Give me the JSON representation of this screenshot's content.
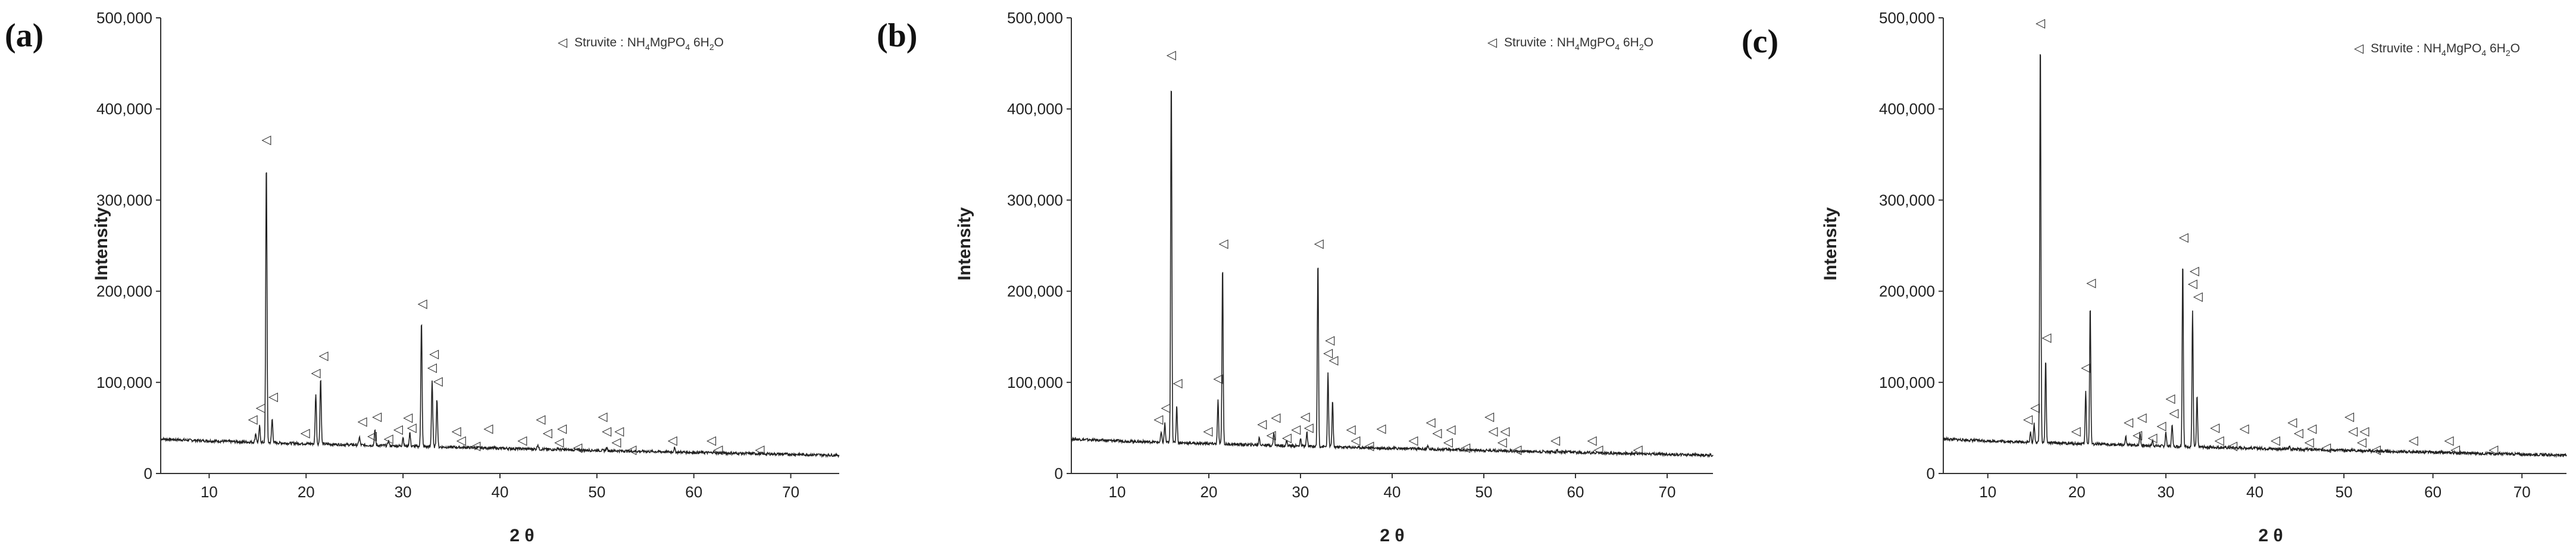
{
  "figure": {
    "panel_letters": [
      "(a)",
      "(b)",
      "(c)"
    ],
    "legend": {
      "marker_symbol": "◁",
      "label_prefix": "Struvite : NH",
      "sub1": "4",
      "mid": "MgPO",
      "sub2": "4",
      "after": " 6H",
      "sub3": "2",
      "end": "O"
    },
    "colors": {
      "line": "#222222",
      "axis": "#333333",
      "marker": "#333333"
    }
  },
  "chart_data": [
    {
      "type": "line",
      "panel": "(a)",
      "xlabel": "2 θ",
      "ylabel": "Intensity",
      "xlim": [
        5,
        75
      ],
      "ylim": [
        0,
        500000
      ],
      "x_ticks": [
        10,
        20,
        30,
        40,
        50,
        60,
        70
      ],
      "y_ticks": [
        0,
        100000,
        200000,
        300000,
        400000,
        500000
      ],
      "y_tick_labels": [
        "0",
        "100,000",
        "200,000",
        "300,000",
        "400,000",
        "500,000"
      ],
      "background": {
        "start": 38000,
        "end": 20000
      },
      "peaks": [
        {
          "x": 14.8,
          "y": 44000
        },
        {
          "x": 15.2,
          "y": 52000
        },
        {
          "x": 15.9,
          "y": 345000
        },
        {
          "x": 16.5,
          "y": 60000
        },
        {
          "x": 19.9,
          "y": 28000
        },
        {
          "x": 21.0,
          "y": 88000
        },
        {
          "x": 21.5,
          "y": 105000
        },
        {
          "x": 25.5,
          "y": 40000
        },
        {
          "x": 27.1,
          "y": 47000
        },
        {
          "x": 28.5,
          "y": 36000
        },
        {
          "x": 30.0,
          "y": 40000
        },
        {
          "x": 30.7,
          "y": 45000
        },
        {
          "x": 31.9,
          "y": 170000
        },
        {
          "x": 33.0,
          "y": 102000
        },
        {
          "x": 33.5,
          "y": 82000
        },
        {
          "x": 35.2,
          "y": 26000
        },
        {
          "x": 36.0,
          "y": 20000
        },
        {
          "x": 38.0,
          "y": 24000
        },
        {
          "x": 42.0,
          "y": 22000
        },
        {
          "x": 43.9,
          "y": 32000
        },
        {
          "x": 45.0,
          "y": 24000
        },
        {
          "x": 46.0,
          "y": 28000
        },
        {
          "x": 47.0,
          "y": 20000
        },
        {
          "x": 49.5,
          "y": 18000
        },
        {
          "x": 51.0,
          "y": 28000
        },
        {
          "x": 52.0,
          "y": 24000
        },
        {
          "x": 53.0,
          "y": 16000
        },
        {
          "x": 58.0,
          "y": 28000
        },
        {
          "x": 62.0,
          "y": 24000
        },
        {
          "x": 63.0,
          "y": 14000
        }
      ],
      "markers": [
        {
          "x": 14.5,
          "y": 55000
        },
        {
          "x": 15.3,
          "y": 68000
        },
        {
          "x": 15.9,
          "y": 362000
        },
        {
          "x": 16.6,
          "y": 80000
        },
        {
          "x": 19.9,
          "y": 40000
        },
        {
          "x": 21.0,
          "y": 106000
        },
        {
          "x": 21.8,
          "y": 125000
        },
        {
          "x": 25.8,
          "y": 53000
        },
        {
          "x": 27.3,
          "y": 58000
        },
        {
          "x": 26.8,
          "y": 37000
        },
        {
          "x": 28.5,
          "y": 34000
        },
        {
          "x": 29.5,
          "y": 44000
        },
        {
          "x": 30.5,
          "y": 57000
        },
        {
          "x": 30.9,
          "y": 46000
        },
        {
          "x": 32.0,
          "y": 182000
        },
        {
          "x": 33.2,
          "y": 127000
        },
        {
          "x": 33.0,
          "y": 112000
        },
        {
          "x": 33.6,
          "y": 97000
        },
        {
          "x": 35.5,
          "y": 42000
        },
        {
          "x": 36.0,
          "y": 32000
        },
        {
          "x": 37.5,
          "y": 26000
        },
        {
          "x": 38.8,
          "y": 45000
        },
        {
          "x": 42.3,
          "y": 32000
        },
        {
          "x": 44.2,
          "y": 55000
        },
        {
          "x": 44.9,
          "y": 40000
        },
        {
          "x": 46.4,
          "y": 45000
        },
        {
          "x": 46.1,
          "y": 30000
        },
        {
          "x": 48.0,
          "y": 24000
        },
        {
          "x": 50.6,
          "y": 58000
        },
        {
          "x": 51.0,
          "y": 42000
        },
        {
          "x": 52.3,
          "y": 42000
        },
        {
          "x": 52.0,
          "y": 30000
        },
        {
          "x": 53.6,
          "y": 22000
        },
        {
          "x": 57.8,
          "y": 32000
        },
        {
          "x": 61.8,
          "y": 32000
        },
        {
          "x": 62.5,
          "y": 22000
        },
        {
          "x": 66.8,
          "y": 22000
        }
      ]
    },
    {
      "type": "line",
      "panel": "(b)",
      "xlabel": "2 θ",
      "ylabel": "Intensity",
      "xlim": [
        5,
        75
      ],
      "ylim": [
        0,
        500000
      ],
      "x_ticks": [
        10,
        20,
        30,
        40,
        50,
        60,
        70
      ],
      "y_ticks": [
        0,
        100000,
        200000,
        300000,
        400000,
        500000
      ],
      "y_tick_labels": [
        "0",
        "100,000",
        "200,000",
        "300,000",
        "400,000",
        "500,000"
      ],
      "background": {
        "start": 38000,
        "end": 20000
      },
      "peaks": [
        {
          "x": 14.8,
          "y": 45000
        },
        {
          "x": 15.2,
          "y": 55000
        },
        {
          "x": 15.9,
          "y": 440000
        },
        {
          "x": 16.5,
          "y": 75000
        },
        {
          "x": 19.9,
          "y": 30000
        },
        {
          "x": 21.0,
          "y": 80000
        },
        {
          "x": 21.5,
          "y": 230000
        },
        {
          "x": 25.5,
          "y": 40000
        },
        {
          "x": 27.1,
          "y": 45000
        },
        {
          "x": 28.5,
          "y": 36000
        },
        {
          "x": 30.0,
          "y": 38000
        },
        {
          "x": 30.7,
          "y": 45000
        },
        {
          "x": 31.9,
          "y": 235000
        },
        {
          "x": 33.0,
          "y": 110000
        },
        {
          "x": 33.5,
          "y": 80000
        },
        {
          "x": 35.2,
          "y": 24000
        },
        {
          "x": 36.0,
          "y": 20000
        },
        {
          "x": 38.0,
          "y": 22000
        },
        {
          "x": 42.0,
          "y": 20000
        },
        {
          "x": 43.9,
          "y": 30000
        },
        {
          "x": 45.0,
          "y": 22000
        },
        {
          "x": 46.0,
          "y": 26000
        },
        {
          "x": 47.0,
          "y": 18000
        },
        {
          "x": 49.5,
          "y": 16000
        },
        {
          "x": 51.0,
          "y": 26000
        },
        {
          "x": 52.0,
          "y": 22000
        },
        {
          "x": 53.0,
          "y": 14000
        },
        {
          "x": 58.0,
          "y": 26000
        },
        {
          "x": 62.0,
          "y": 20000
        },
        {
          "x": 63.0,
          "y": 12000
        }
      ],
      "markers": [
        {
          "x": 14.5,
          "y": 55000
        },
        {
          "x": 15.3,
          "y": 68000
        },
        {
          "x": 15.9,
          "y": 455000
        },
        {
          "x": 16.6,
          "y": 95000
        },
        {
          "x": 19.9,
          "y": 42000
        },
        {
          "x": 21.0,
          "y": 100000
        },
        {
          "x": 21.6,
          "y": 248000
        },
        {
          "x": 25.8,
          "y": 50000
        },
        {
          "x": 27.3,
          "y": 57000
        },
        {
          "x": 26.8,
          "y": 38000
        },
        {
          "x": 28.5,
          "y": 35000
        },
        {
          "x": 29.5,
          "y": 44000
        },
        {
          "x": 30.5,
          "y": 58000
        },
        {
          "x": 30.9,
          "y": 46000
        },
        {
          "x": 32.0,
          "y": 248000
        },
        {
          "x": 33.2,
          "y": 142000
        },
        {
          "x": 33.0,
          "y": 128000
        },
        {
          "x": 33.6,
          "y": 120000
        },
        {
          "x": 35.5,
          "y": 44000
        },
        {
          "x": 36.0,
          "y": 32000
        },
        {
          "x": 37.5,
          "y": 26000
        },
        {
          "x": 38.8,
          "y": 45000
        },
        {
          "x": 42.3,
          "y": 32000
        },
        {
          "x": 44.2,
          "y": 52000
        },
        {
          "x": 44.9,
          "y": 40000
        },
        {
          "x": 46.4,
          "y": 44000
        },
        {
          "x": 46.1,
          "y": 30000
        },
        {
          "x": 48.0,
          "y": 24000
        },
        {
          "x": 50.6,
          "y": 58000
        },
        {
          "x": 51.0,
          "y": 42000
        },
        {
          "x": 52.3,
          "y": 42000
        },
        {
          "x": 52.0,
          "y": 30000
        },
        {
          "x": 53.6,
          "y": 22000
        },
        {
          "x": 57.8,
          "y": 32000
        },
        {
          "x": 61.8,
          "y": 32000
        },
        {
          "x": 62.5,
          "y": 22000
        },
        {
          "x": 66.8,
          "y": 22000
        }
      ]
    },
    {
      "type": "line",
      "panel": "(c)",
      "xlabel": "2 θ",
      "ylabel": "Intensity",
      "xlim": [
        5,
        75
      ],
      "ylim": [
        0,
        500000
      ],
      "x_ticks": [
        10,
        20,
        30,
        40,
        50,
        60,
        70
      ],
      "y_ticks": [
        0,
        100000,
        200000,
        300000,
        400000,
        500000
      ],
      "y_tick_labels": [
        "0",
        "100,000",
        "200,000",
        "300,000",
        "400,000",
        "500,000"
      ],
      "background": {
        "start": 38000,
        "end": 20000
      },
      "peaks": [
        {
          "x": 14.8,
          "y": 45000
        },
        {
          "x": 15.2,
          "y": 55000
        },
        {
          "x": 15.9,
          "y": 480000
        },
        {
          "x": 16.5,
          "y": 125000
        },
        {
          "x": 19.9,
          "y": 30000
        },
        {
          "x": 21.0,
          "y": 90000
        },
        {
          "x": 21.5,
          "y": 185000
        },
        {
          "x": 25.5,
          "y": 40000
        },
        {
          "x": 27.1,
          "y": 45000
        },
        {
          "x": 28.5,
          "y": 36000
        },
        {
          "x": 30.0,
          "y": 45000
        },
        {
          "x": 30.7,
          "y": 55000
        },
        {
          "x": 31.9,
          "y": 235000
        },
        {
          "x": 33.0,
          "y": 180000
        },
        {
          "x": 33.5,
          "y": 85000
        },
        {
          "x": 35.2,
          "y": 26000
        },
        {
          "x": 36.0,
          "y": 20000
        },
        {
          "x": 38.0,
          "y": 22000
        },
        {
          "x": 42.0,
          "y": 20000
        },
        {
          "x": 43.9,
          "y": 30000
        },
        {
          "x": 45.0,
          "y": 22000
        },
        {
          "x": 46.0,
          "y": 26000
        },
        {
          "x": 47.0,
          "y": 18000
        },
        {
          "x": 49.5,
          "y": 16000
        },
        {
          "x": 51.0,
          "y": 26000
        },
        {
          "x": 52.0,
          "y": 22000
        },
        {
          "x": 53.0,
          "y": 14000
        },
        {
          "x": 58.0,
          "y": 24000
        },
        {
          "x": 62.0,
          "y": 20000
        },
        {
          "x": 63.0,
          "y": 12000
        }
      ],
      "markers": [
        {
          "x": 14.5,
          "y": 55000
        },
        {
          "x": 15.3,
          "y": 68000
        },
        {
          "x": 15.9,
          "y": 490000
        },
        {
          "x": 16.6,
          "y": 145000
        },
        {
          "x": 19.9,
          "y": 42000
        },
        {
          "x": 21.0,
          "y": 112000
        },
        {
          "x": 21.6,
          "y": 205000
        },
        {
          "x": 25.8,
          "y": 52000
        },
        {
          "x": 27.3,
          "y": 57000
        },
        {
          "x": 26.8,
          "y": 38000
        },
        {
          "x": 28.5,
          "y": 35000
        },
        {
          "x": 29.5,
          "y": 48000
        },
        {
          "x": 30.5,
          "y": 78000
        },
        {
          "x": 30.9,
          "y": 62000
        },
        {
          "x": 32.0,
          "y": 255000
        },
        {
          "x": 33.2,
          "y": 218000
        },
        {
          "x": 33.0,
          "y": 204000
        },
        {
          "x": 33.6,
          "y": 190000
        },
        {
          "x": 35.5,
          "y": 46000
        },
        {
          "x": 36.0,
          "y": 32000
        },
        {
          "x": 37.5,
          "y": 26000
        },
        {
          "x": 38.8,
          "y": 45000
        },
        {
          "x": 42.3,
          "y": 32000
        },
        {
          "x": 44.2,
          "y": 52000
        },
        {
          "x": 44.9,
          "y": 40000
        },
        {
          "x": 46.4,
          "y": 45000
        },
        {
          "x": 46.1,
          "y": 30000
        },
        {
          "x": 48.0,
          "y": 24000
        },
        {
          "x": 50.6,
          "y": 58000
        },
        {
          "x": 51.0,
          "y": 42000
        },
        {
          "x": 52.3,
          "y": 42000
        },
        {
          "x": 52.0,
          "y": 30000
        },
        {
          "x": 53.6,
          "y": 22000
        },
        {
          "x": 57.8,
          "y": 32000
        },
        {
          "x": 61.8,
          "y": 32000
        },
        {
          "x": 62.5,
          "y": 22000
        },
        {
          "x": 66.8,
          "y": 22000
        }
      ]
    }
  ]
}
